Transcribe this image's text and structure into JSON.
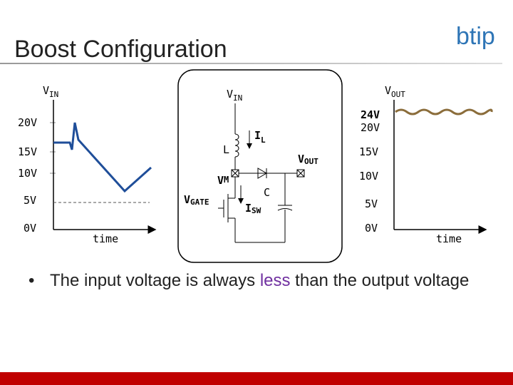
{
  "header": {
    "title": "Boost Configuration",
    "logo": "btip"
  },
  "left_graph": {
    "label": {
      "main": "V",
      "sub": "IN"
    },
    "ticks": [
      "20V",
      "15V",
      "10V",
      "5V",
      "0V"
    ],
    "x_label": "time"
  },
  "circuit": {
    "vin": {
      "main": "V",
      "sub": "IN"
    },
    "inductor": "L",
    "inductor_current": {
      "main": "I",
      "sub": "L"
    },
    "node": {
      "main": "V",
      "sub": "M"
    },
    "vout": {
      "main": "V",
      "sub": "OUT"
    },
    "gate": {
      "main": "V",
      "sub": "GATE"
    },
    "capacitor": "C",
    "switch_current": {
      "main": "I",
      "sub": "SW"
    }
  },
  "right_graph": {
    "label": {
      "main": "V",
      "sub": "OUT"
    },
    "peak": "24V",
    "ticks": [
      "20V",
      "15V",
      "10V",
      "5V",
      "0V"
    ],
    "x_label": "time"
  },
  "bullet": {
    "before": "The input voltage is always ",
    "emphasis": "less",
    "after": " than the output voltage"
  }
}
